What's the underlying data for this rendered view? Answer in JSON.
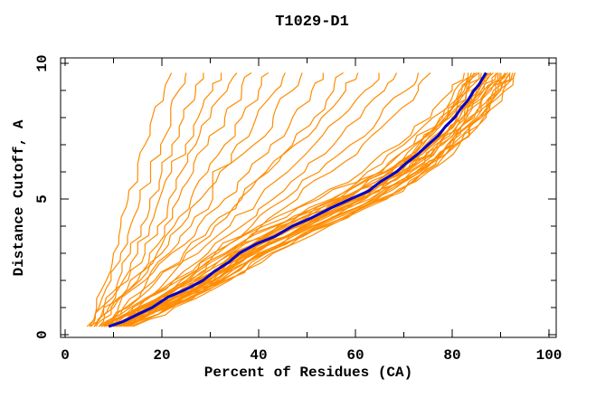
{
  "chart_data": {
    "type": "line",
    "title": "T1029-D1",
    "xlabel": "Percent of Residues (CA)",
    "ylabel": "Distance Cutoff, A",
    "xlim": [
      -1,
      101.5
    ],
    "ylim": [
      -0.1,
      10.2
    ],
    "grid": false,
    "legend": "none",
    "x_axis": {
      "tick_values": [
        0,
        10,
        20,
        30,
        40,
        50,
        60,
        70,
        80,
        90,
        100
      ],
      "labeled_ticks": [
        0,
        20,
        40,
        60,
        80,
        100
      ],
      "tick_labels": [
        "0",
        "20",
        "40",
        "60",
        "80",
        "100"
      ]
    },
    "y_axis": {
      "tick_values": [
        0,
        1,
        2,
        3,
        4,
        5,
        6,
        7,
        8,
        9,
        10
      ],
      "labeled_ticks": [
        0,
        5,
        10
      ],
      "tick_labels": [
        "0",
        "5",
        "10"
      ]
    },
    "colors": {
      "models": "#ff8c00",
      "highlight": "#0000cd",
      "axis": "#000000",
      "background": "#ffffff"
    },
    "levels": [
      0.3,
      1,
      2,
      3,
      4,
      5,
      6,
      7,
      8,
      9,
      9.65
    ],
    "models_x_at_levels": [
      [
        5,
        6.5,
        8.5,
        10,
        11.5,
        13,
        15,
        16.5,
        18,
        20.5,
        22
      ],
      [
        5.5,
        7,
        9.5,
        11.5,
        13.5,
        15.5,
        17.5,
        19.5,
        21.5,
        23.5,
        25
      ],
      [
        6,
        8,
        11,
        13.5,
        15.5,
        17.5,
        20,
        22,
        24.5,
        27,
        28.5
      ],
      [
        4.5,
        7.5,
        12,
        15,
        17.5,
        19.5,
        22,
        24.5,
        27.5,
        30.5,
        32
      ],
      [
        6.5,
        9,
        13,
        16.5,
        19,
        21.5,
        24,
        27,
        30,
        33.5,
        35.5
      ],
      [
        5,
        8,
        13.5,
        17.5,
        20.5,
        23.5,
        26.5,
        29.5,
        33,
        36.5,
        38.5
      ],
      [
        7,
        10,
        15,
        19,
        22.5,
        26,
        29.5,
        33,
        36.5,
        40,
        42
      ],
      [
        6,
        9.5,
        15.5,
        20,
        24,
        28,
        32,
        35.5,
        39.5,
        43.5,
        45.5
      ],
      [
        8,
        12,
        17,
        21.5,
        26,
        30.5,
        30.5,
        39,
        43,
        47,
        49
      ],
      [
        7.5,
        11,
        16.5,
        22,
        27.5,
        33,
        38,
        42.5,
        47,
        51,
        53
      ],
      [
        9,
        13,
        19,
        25,
        31,
        36.5,
        42,
        47,
        51.5,
        55.5,
        57.5
      ],
      [
        8.5,
        12.5,
        18.5,
        24.5,
        30,
        36,
        41.5,
        47.5,
        53,
        58,
        60.5
      ],
      [
        10,
        14,
        21,
        27.5,
        34,
        40,
        46,
        51.5,
        57,
        62,
        64.5
      ],
      [
        9.5,
        15,
        22.5,
        29.5,
        36.5,
        43,
        49.5,
        55.5,
        61,
        66,
        68.5
      ],
      [
        10,
        16,
        24,
        31,
        38.5,
        45.5,
        52.5,
        59,
        65,
        70.5,
        73
      ],
      [
        11,
        17,
        25.5,
        33,
        40.5,
        48,
        55,
        61.5,
        67.5,
        73,
        75.5
      ],
      [
        8,
        15,
        25,
        33,
        43,
        55,
        65,
        72,
        77.5,
        81.5,
        84
      ],
      [
        9,
        16.5,
        27,
        34.5,
        45,
        57,
        67,
        73.5,
        79,
        83,
        85.5
      ],
      [
        10.5,
        18.5,
        29,
        37,
        48,
        60,
        69.5,
        76,
        81.5,
        85.5,
        88
      ],
      [
        11,
        19.5,
        30.5,
        38.5,
        49.5,
        61.5,
        71,
        77.5,
        83,
        87,
        89.5
      ],
      [
        12,
        20.5,
        31.5,
        40,
        51,
        63,
        72.5,
        79,
        84.5,
        88.5,
        91
      ],
      [
        13,
        21.5,
        33,
        41.5,
        53,
        65,
        74,
        80.5,
        86,
        90,
        92.5
      ],
      [
        7.5,
        14,
        23.5,
        31.5,
        41,
        52.5,
        62.5,
        70,
        76,
        80.5,
        83
      ],
      [
        9.5,
        17.5,
        28,
        36,
        46.5,
        58,
        68,
        74.5,
        80,
        84,
        86.5
      ],
      [
        10,
        18,
        29.5,
        38,
        49,
        60.5,
        70,
        76.5,
        82,
        86,
        88.5
      ],
      [
        11.5,
        20,
        31,
        39.5,
        50.5,
        62,
        71.5,
        78,
        83.5,
        87.5,
        90
      ],
      [
        8.5,
        16,
        26,
        34,
        44,
        56,
        66,
        72.5,
        78.5,
        82.5,
        85
      ],
      [
        12.5,
        21,
        32,
        40.5,
        52,
        64,
        73,
        79.5,
        85,
        89,
        91.5
      ],
      [
        9,
        17,
        27.5,
        35.5,
        46,
        57.5,
        67.5,
        74,
        79.5,
        83.5,
        86
      ],
      [
        10.5,
        19,
        30,
        38.5,
        49.5,
        61,
        70.5,
        77,
        82.5,
        86.5,
        89
      ],
      [
        11,
        19.5,
        31,
        40,
        51.5,
        63.5,
        72.5,
        79,
        84,
        88,
        90.5
      ],
      [
        13.5,
        22,
        33.5,
        42.5,
        54,
        66,
        74.5,
        81,
        86.5,
        90.5,
        93
      ],
      [
        8,
        15.5,
        25.5,
        33.5,
        43.5,
        55.5,
        65.5,
        72,
        78,
        82,
        84.5
      ],
      [
        10,
        18.5,
        29,
        37.5,
        48.5,
        60,
        69.5,
        76,
        81.5,
        85.5,
        88
      ],
      [
        12,
        20.5,
        32,
        41,
        52.5,
        64.5,
        73.5,
        80,
        85.5,
        89.5,
        92
      ],
      [
        9.5,
        17,
        27,
        35,
        45.5,
        57,
        67,
        73.5,
        79,
        83,
        85.5
      ],
      [
        11.5,
        19.5,
        30.5,
        39,
        50,
        61.5,
        71,
        77.5,
        83,
        87,
        89.5
      ],
      [
        14,
        22.5,
        34,
        43,
        54.5,
        66.5,
        75,
        81.5,
        87,
        91,
        93
      ],
      [
        7,
        13.5,
        22.5,
        30.5,
        40,
        51.5,
        61.5,
        69,
        75.5,
        80,
        82.5
      ],
      [
        10.5,
        18,
        28.5,
        37,
        47.5,
        59.5,
        69,
        75.5,
        81,
        85,
        87.5
      ],
      [
        12.5,
        21.5,
        32.5,
        41.5,
        53.5,
        65.5,
        74,
        80.5,
        86,
        90,
        92
      ],
      [
        9,
        16,
        26.5,
        34.5,
        44.5,
        56.5,
        66.5,
        73,
        79,
        83,
        85.5
      ],
      [
        11,
        19,
        29.5,
        38,
        49,
        61,
        70.5,
        77,
        82.5,
        86.5,
        89
      ],
      [
        13,
        21,
        32.5,
        41,
        52,
        64,
        73.5,
        80,
        85.5,
        89.5,
        91.5
      ],
      [
        10,
        17.5,
        28,
        36.5,
        47,
        58.5,
        68.5,
        75,
        80.5,
        84.5,
        87
      ]
    ],
    "highlight_x_at_levels": [
      9,
      18,
      28.5,
      36,
      47,
      59,
      68.5,
      75,
      80.5,
      84.5,
      87
    ]
  }
}
